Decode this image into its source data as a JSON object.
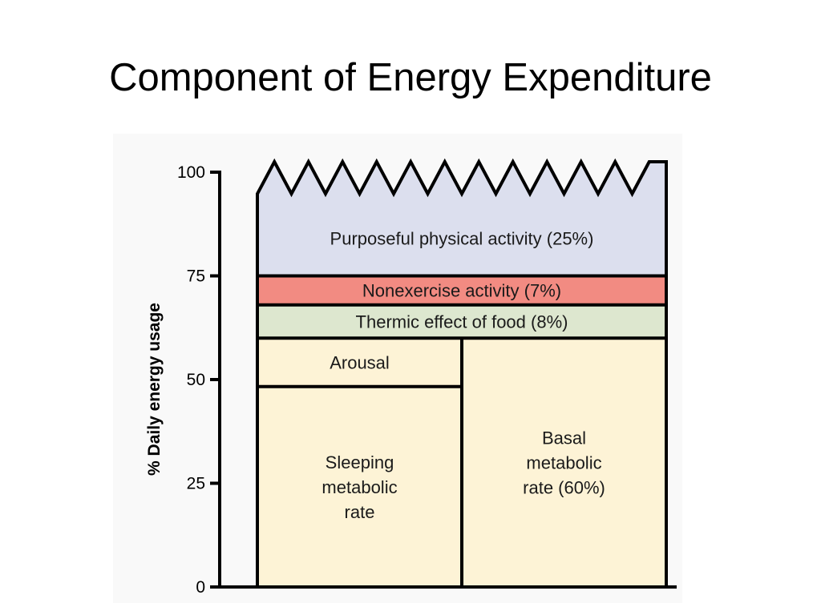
{
  "slide": {
    "title": "Component of Energy Expenditure"
  },
  "chart_data": {
    "type": "stacked-block",
    "title": "Component of Energy Expenditure",
    "ylabel": "% Daily energy usage",
    "ylim": [
      0,
      100
    ],
    "yticks": [
      0,
      25,
      50,
      75,
      100
    ],
    "grid": false,
    "legend": "none",
    "top_edge": "zigzag",
    "segments": [
      {
        "id": "sleeping-metabolic-rate",
        "lines": [
          "Sleeping",
          "metabolic",
          "rate"
        ],
        "column": "left-half",
        "y0": 0,
        "y1": 48.3,
        "color": "#fdf3d6"
      },
      {
        "id": "arousal",
        "lines": [
          "Arousal"
        ],
        "column": "left-half",
        "y0": 48.3,
        "y1": 60,
        "color": "#fdf3d6"
      },
      {
        "id": "basal-metabolic-rate",
        "lines": [
          "Basal",
          "metabolic",
          "rate (60%)"
        ],
        "value": 60,
        "column": "right-half",
        "y0": 0,
        "y1": 60,
        "color": "#fdf3d6"
      },
      {
        "id": "thermic-effect-of-food",
        "lines": [
          "Thermic effect of food (8%)"
        ],
        "value": 8,
        "column": "full",
        "y0": 60,
        "y1": 68,
        "color": "#dde7cf"
      },
      {
        "id": "nonexercise-activity",
        "lines": [
          "Nonexercise activity (7%)"
        ],
        "value": 7,
        "column": "full",
        "y0": 68,
        "y1": 75,
        "color": "#f28b82"
      },
      {
        "id": "purposeful-physical-activity",
        "lines": [
          "Purposeful physical activity (25%)"
        ],
        "value": 25,
        "column": "full",
        "y0": 75,
        "y1": 100,
        "color": "#dcdfee"
      }
    ]
  }
}
